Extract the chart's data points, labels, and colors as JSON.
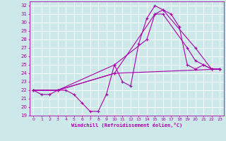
{
  "xlabel": "Windchill (Refroidissement éolien,°C)",
  "bg_color": "#cce8e8",
  "line_color": "#aa00aa",
  "grid_color": "#ffffff",
  "xlim": [
    -0.5,
    23.5
  ],
  "ylim": [
    19,
    32.5
  ],
  "xticks": [
    0,
    1,
    2,
    3,
    4,
    5,
    6,
    7,
    8,
    9,
    10,
    11,
    12,
    13,
    14,
    15,
    16,
    17,
    18,
    19,
    20,
    21,
    22,
    23
  ],
  "yticks": [
    19,
    20,
    21,
    22,
    23,
    24,
    25,
    26,
    27,
    28,
    29,
    30,
    31,
    32
  ],
  "curves": [
    {
      "x": [
        0,
        1,
        2,
        3,
        4,
        5,
        6,
        7,
        8,
        9,
        10,
        11,
        12,
        13,
        14,
        15,
        16,
        17,
        18,
        19,
        20,
        21,
        22,
        23
      ],
      "y": [
        22,
        21.5,
        21.5,
        22,
        22,
        21.5,
        20.5,
        19.5,
        19.5,
        21.5,
        25,
        23,
        22.5,
        27.5,
        30.5,
        32,
        31.5,
        31,
        29.5,
        25,
        24.5,
        25,
        24.5,
        24.5
      ]
    },
    {
      "x": [
        0,
        3,
        10,
        14,
        15,
        16,
        19,
        20,
        21,
        22,
        23
      ],
      "y": [
        22,
        22,
        25,
        28,
        31,
        31,
        27,
        25.5,
        25,
        24.5,
        24.5
      ]
    },
    {
      "x": [
        0,
        3,
        10,
        15,
        16,
        20,
        22,
        23
      ],
      "y": [
        22,
        22,
        24,
        31,
        31.5,
        27,
        24.5,
        24.5
      ]
    },
    {
      "x": [
        0,
        3,
        10,
        23
      ],
      "y": [
        22,
        22,
        24,
        24.5
      ]
    }
  ]
}
